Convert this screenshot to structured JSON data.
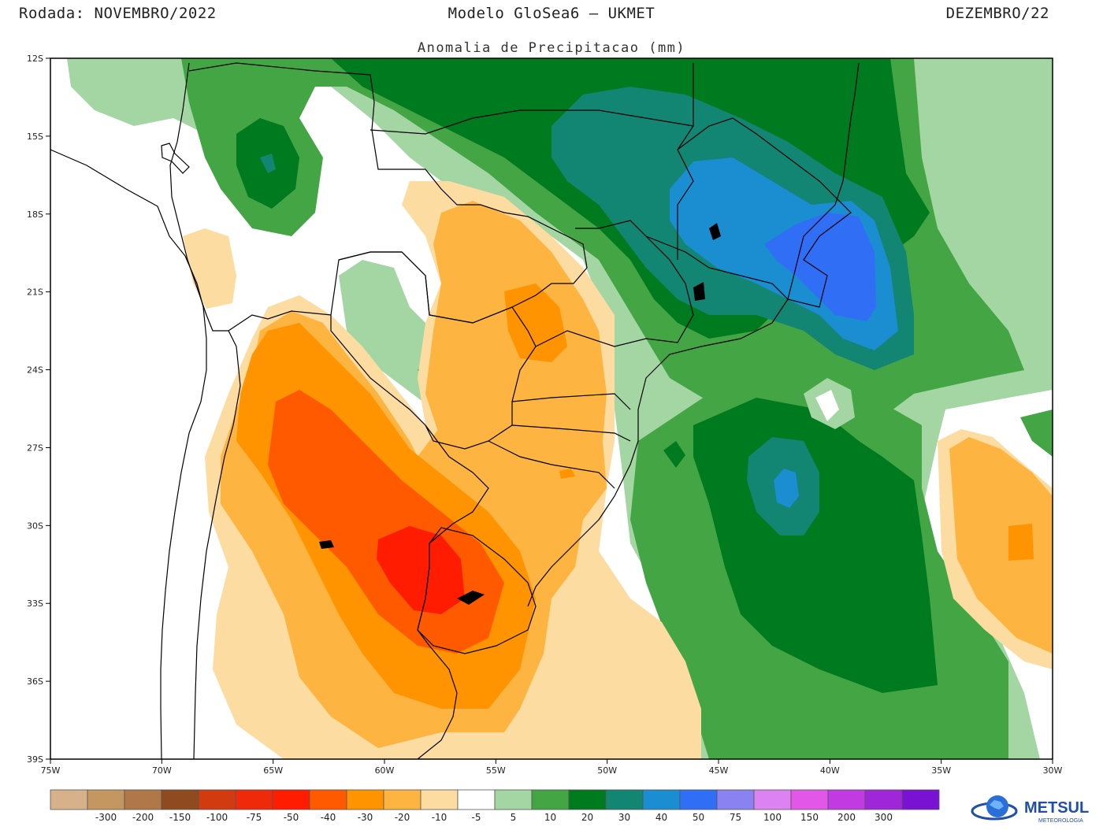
{
  "header": {
    "run_label": "Rodada: NOVEMBRO/2022",
    "model_label": "Modelo GloSea6 — UKMET",
    "target_month": "DEZEMBRO/22",
    "subtitle": "Anomalia de Precipitacao (mm)"
  },
  "map": {
    "lat_labels": [
      "12S",
      "15S",
      "18S",
      "21S",
      "24S",
      "27S",
      "30S",
      "33S",
      "36S",
      "39S"
    ],
    "lon_labels": [
      "75W",
      "70W",
      "65W",
      "60W",
      "55W",
      "50W",
      "45W",
      "40W",
      "35W",
      "30W"
    ],
    "lon_range": [
      -75,
      -30
    ],
    "lat_range": [
      -39,
      -12
    ]
  },
  "colorbar": {
    "colors": [
      "#d6b18a",
      "#c49660",
      "#b07848",
      "#8f4a20",
      "#d23a10",
      "#ee2a0a",
      "#ff1c00",
      "#ff5a00",
      "#ff9300",
      "#fdb440",
      "#fcdca0",
      "#ffffff",
      "#a3d6a3",
      "#44a544",
      "#007a1e",
      "#138573",
      "#1a8ed1",
      "#2f6ef5",
      "#8a82f0",
      "#dc82f2",
      "#e257e8",
      "#c23ae2",
      "#a026da",
      "#7a12d4"
    ],
    "labels": [
      "-300",
      "-200",
      "-150",
      "-100",
      "-75",
      "-50",
      "-40",
      "-30",
      "-20",
      "-10",
      "-5",
      "5",
      "10",
      "20",
      "30",
      "40",
      "50",
      "75",
      "100",
      "150",
      "200",
      "300"
    ]
  },
  "logo": {
    "brand": "METSUL",
    "tagline": "METEOROLOGIA"
  }
}
